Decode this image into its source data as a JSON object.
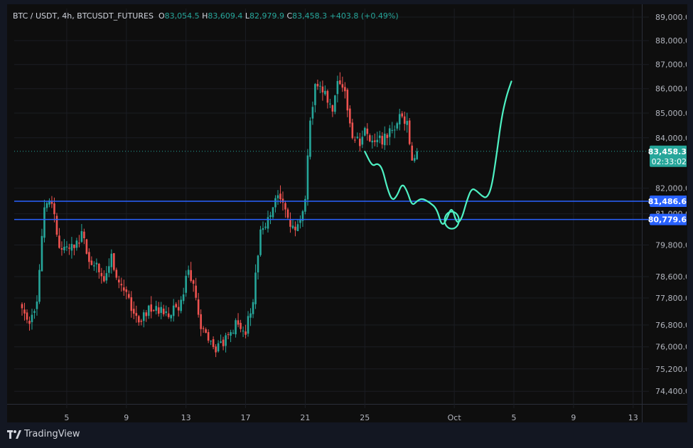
{
  "legend": {
    "symbol": "BTC / USDT, 4h, BTCUSDT_FUTURES",
    "o_label": "O",
    "o_value": "83,054.5",
    "h_label": "H",
    "h_value": "83,609.4",
    "l_label": "L",
    "l_value": "82,979.9",
    "c_label": "C",
    "c_value": "83,458.3",
    "change": "+403.8 (+0.49%)"
  },
  "brand": "TradingView",
  "colors": {
    "up": "#26a69a",
    "down": "#ef5350",
    "level_line": "#2962ff",
    "drawing": "#4ef1c3",
    "price_label_bg": "#26a69a",
    "level_label_bg": "#2962ff"
  },
  "price_labels": {
    "current_price": "83,458.3",
    "countdown": "02:33:02",
    "level_1": "81,486.6",
    "level_2": "80,779.6"
  },
  "chart_data": {
    "type": "candlestick",
    "symbol": "BTCUSDT",
    "interval": "4h",
    "y_scale": "log",
    "ylim": [
      73800,
      89000
    ],
    "y_ticks": [
      {
        "label": "89,000.0",
        "value": 89000
      },
      {
        "label": "88,000.0",
        "value": 88000
      },
      {
        "label": "87,000.0",
        "value": 87000
      },
      {
        "label": "86,000.0",
        "value": 86000
      },
      {
        "label": "85,000.0",
        "value": 85000
      },
      {
        "label": "84,000.0",
        "value": 84000
      },
      {
        "label": "82,000.0",
        "value": 82000
      },
      {
        "label": "81,000.0",
        "value": 81000
      },
      {
        "label": "79,800.0",
        "value": 79800
      },
      {
        "label": "78,600.0",
        "value": 78600
      },
      {
        "label": "77,800.0",
        "value": 77800
      },
      {
        "label": "76,800.0",
        "value": 76800
      },
      {
        "label": "76,000.0",
        "value": 76000
      },
      {
        "label": "75,200.0",
        "value": 75200
      },
      {
        "label": "74,400.0",
        "value": 74400
      }
    ],
    "x_ticks": [
      {
        "label": "5",
        "bar": 18
      },
      {
        "label": "9",
        "bar": 42
      },
      {
        "label": "13",
        "bar": 66
      },
      {
        "label": "17",
        "bar": 90
      },
      {
        "label": "21",
        "bar": 114
      },
      {
        "label": "25",
        "bar": 138
      },
      {
        "label": "Oct",
        "bar": 174
      },
      {
        "label": "5",
        "bar": 198
      },
      {
        "label": "9",
        "bar": 222
      },
      {
        "label": "13",
        "bar": 246
      }
    ],
    "bar_count_visible": 258,
    "current_price": 83458.3,
    "levels": [
      81486.6,
      80779.6
    ],
    "anchors": [
      [
        0,
        77300
      ],
      [
        3,
        77000
      ],
      [
        6,
        77600
      ],
      [
        9,
        81300
      ],
      [
        11,
        81600
      ],
      [
        13,
        81000
      ],
      [
        15,
        79600
      ],
      [
        18,
        79700
      ],
      [
        21,
        79900
      ],
      [
        24,
        80100
      ],
      [
        27,
        79300
      ],
      [
        30,
        78900
      ],
      [
        33,
        78600
      ],
      [
        36,
        79300
      ],
      [
        39,
        78400
      ],
      [
        42,
        77900
      ],
      [
        45,
        77000
      ],
      [
        48,
        76900
      ],
      [
        51,
        77400
      ],
      [
        54,
        77300
      ],
      [
        57,
        77300
      ],
      [
        60,
        77300
      ],
      [
        63,
        77500
      ],
      [
        65,
        78000
      ],
      [
        67,
        78900
      ],
      [
        69,
        78100
      ],
      [
        72,
        76700
      ],
      [
        75,
        76100
      ],
      [
        78,
        75800
      ],
      [
        81,
        76200
      ],
      [
        84,
        76700
      ],
      [
        87,
        76800
      ],
      [
        90,
        76600
      ],
      [
        93,
        77800
      ],
      [
        96,
        80200
      ],
      [
        99,
        81000
      ],
      [
        102,
        81500
      ],
      [
        105,
        81500
      ],
      [
        108,
        80400
      ],
      [
        111,
        80600
      ],
      [
        114,
        81600
      ],
      [
        116,
        84500
      ],
      [
        118,
        86400
      ],
      [
        121,
        86000
      ],
      [
        123,
        85400
      ],
      [
        125,
        85000
      ],
      [
        127,
        86500
      ],
      [
        130,
        85700
      ],
      [
        133,
        84200
      ],
      [
        136,
        83700
      ],
      [
        138,
        84200
      ],
      [
        140,
        84000
      ],
      [
        142,
        83700
      ],
      [
        144,
        83900
      ],
      [
        147,
        84100
      ],
      [
        150,
        84400
      ],
      [
        153,
        84900
      ],
      [
        155,
        84600
      ],
      [
        157,
        83300
      ],
      [
        159,
        83458.3
      ]
    ],
    "drawn_path": [
      [
        138,
        83450
      ],
      [
        141,
        82850
      ],
      [
        143,
        82990
      ],
      [
        145,
        82800
      ],
      [
        147,
        82000
      ],
      [
        149,
        81500
      ],
      [
        151,
        81700
      ],
      [
        153,
        82200
      ],
      [
        155,
        81900
      ],
      [
        157,
        81300
      ],
      [
        159,
        81500
      ],
      [
        161,
        81600
      ],
      [
        164,
        81450
      ],
      [
        167,
        81200
      ],
      [
        169,
        80500
      ],
      [
        171,
        80800
      ],
      [
        173,
        81300
      ],
      [
        175,
        80600
      ],
      [
        177,
        80800
      ],
      [
        179,
        81500
      ],
      [
        181,
        82000
      ],
      [
        183,
        81900
      ],
      [
        185,
        81700
      ],
      [
        187,
        81600
      ],
      [
        189,
        82000
      ],
      [
        191,
        83300
      ],
      [
        193,
        84800
      ],
      [
        195,
        85700
      ],
      [
        197,
        86300
      ]
    ]
  }
}
